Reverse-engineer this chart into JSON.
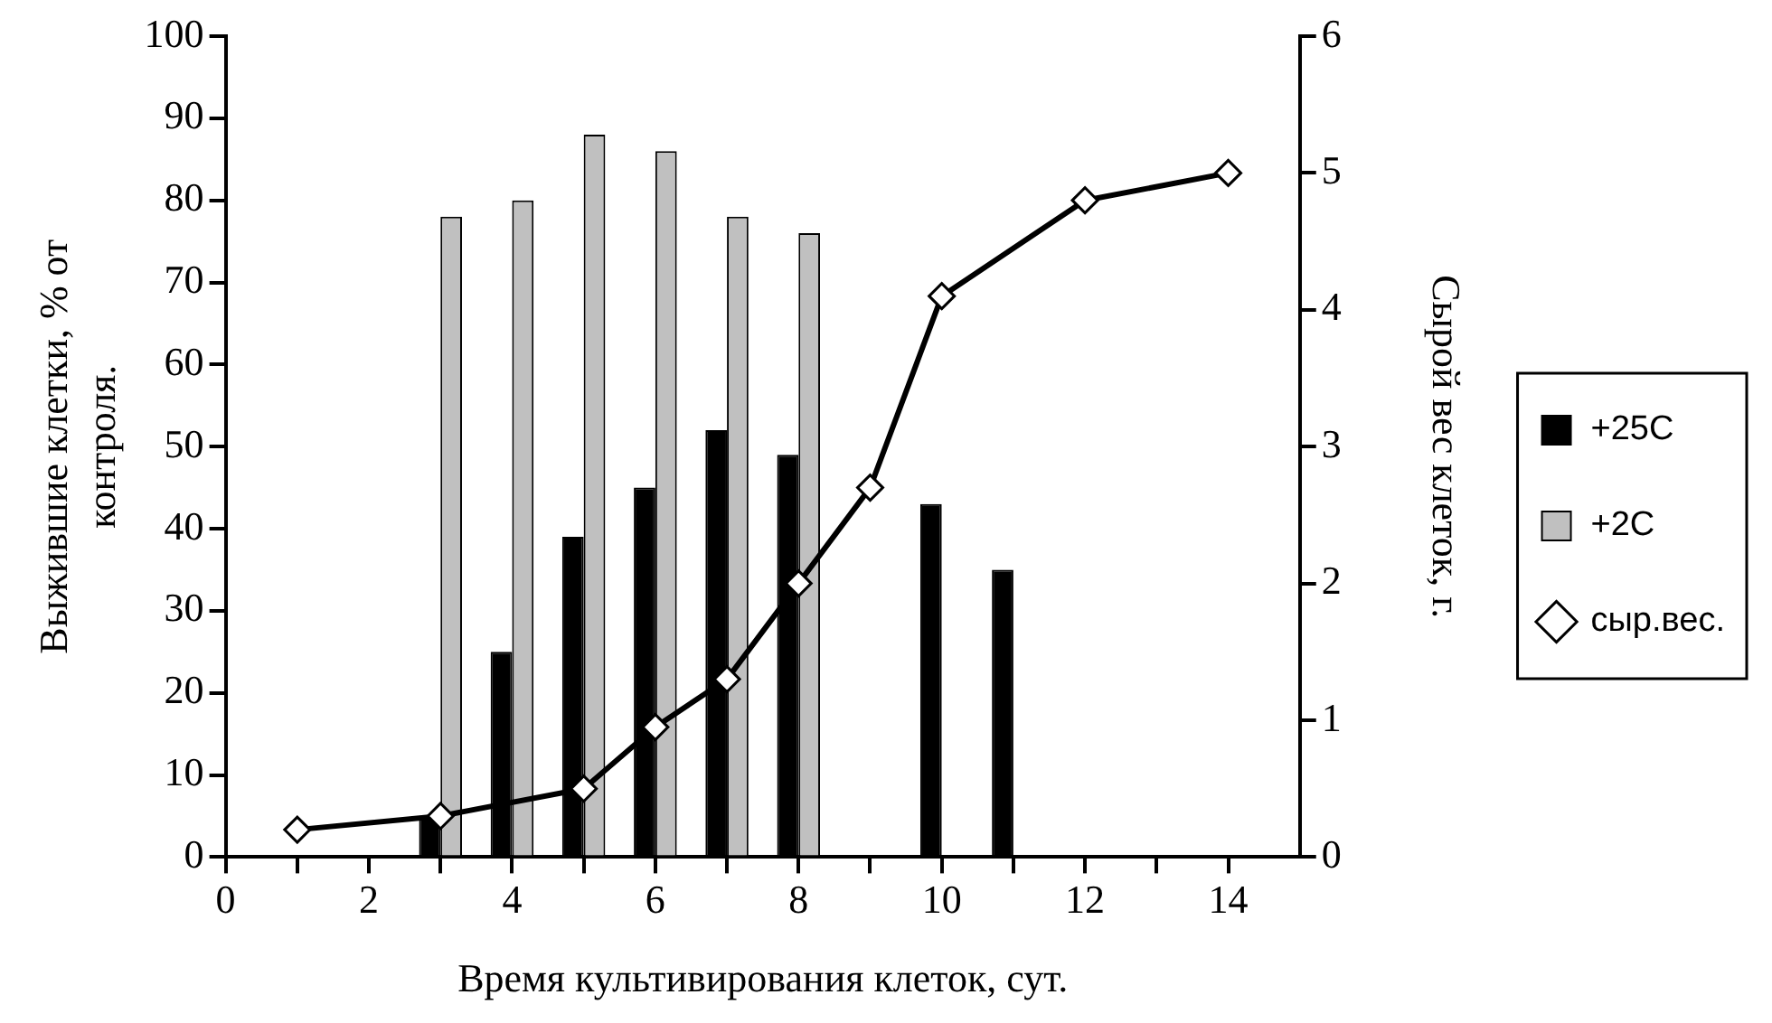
{
  "chart_data": {
    "type": "bar",
    "xlabel": "Время культивирования клеток, сут.",
    "ylabel": "Выжившие клетки, % от\nконтроля.",
    "y2label": "Сырой вес клеток, г.",
    "xlim": [
      0,
      15
    ],
    "xticks": [
      0,
      {
        "value": 1,
        "label": null
      },
      2,
      {
        "value": 3,
        "label": null
      },
      4,
      {
        "value": 5,
        "label": null
      },
      6,
      {
        "value": 7,
        "label": null
      },
      8,
      {
        "value": 9,
        "label": null
      },
      10,
      {
        "value": 11,
        "label": null
      },
      12,
      {
        "value": 13,
        "label": null
      },
      14
    ],
    "ylim": [
      0,
      100
    ],
    "yticks": [
      0,
      10,
      20,
      30,
      40,
      50,
      60,
      70,
      80,
      90,
      100
    ],
    "y2lim": [
      0,
      6
    ],
    "y2ticks": [
      0,
      1,
      2,
      3,
      4,
      5,
      6
    ],
    "grid": false,
    "legend": "right",
    "series": [
      {
        "name": "+25C",
        "color": "#000000",
        "x": [
          3,
          4,
          5,
          6,
          7,
          8,
          10,
          11
        ],
        "values": [
          5,
          25,
          39,
          45,
          52,
          49,
          43,
          35
        ]
      },
      {
        "name": "+2C",
        "color": "#c0c0c0",
        "x": [
          3,
          4,
          5,
          6,
          7,
          8
        ],
        "values": [
          78,
          80,
          88,
          86,
          78,
          76
        ]
      },
      {
        "name": "сыр.вес.",
        "type": "line",
        "axis": "y2",
        "color": "#000000",
        "marker": "diamond",
        "line_style": "solid",
        "x": [
          1,
          3,
          5,
          6,
          7,
          8,
          9,
          10,
          12,
          14
        ],
        "values": [
          0.2,
          0.3,
          0.5,
          0.95,
          1.3,
          2.0,
          2.7,
          4.1,
          4.8,
          5.0
        ]
      }
    ]
  }
}
